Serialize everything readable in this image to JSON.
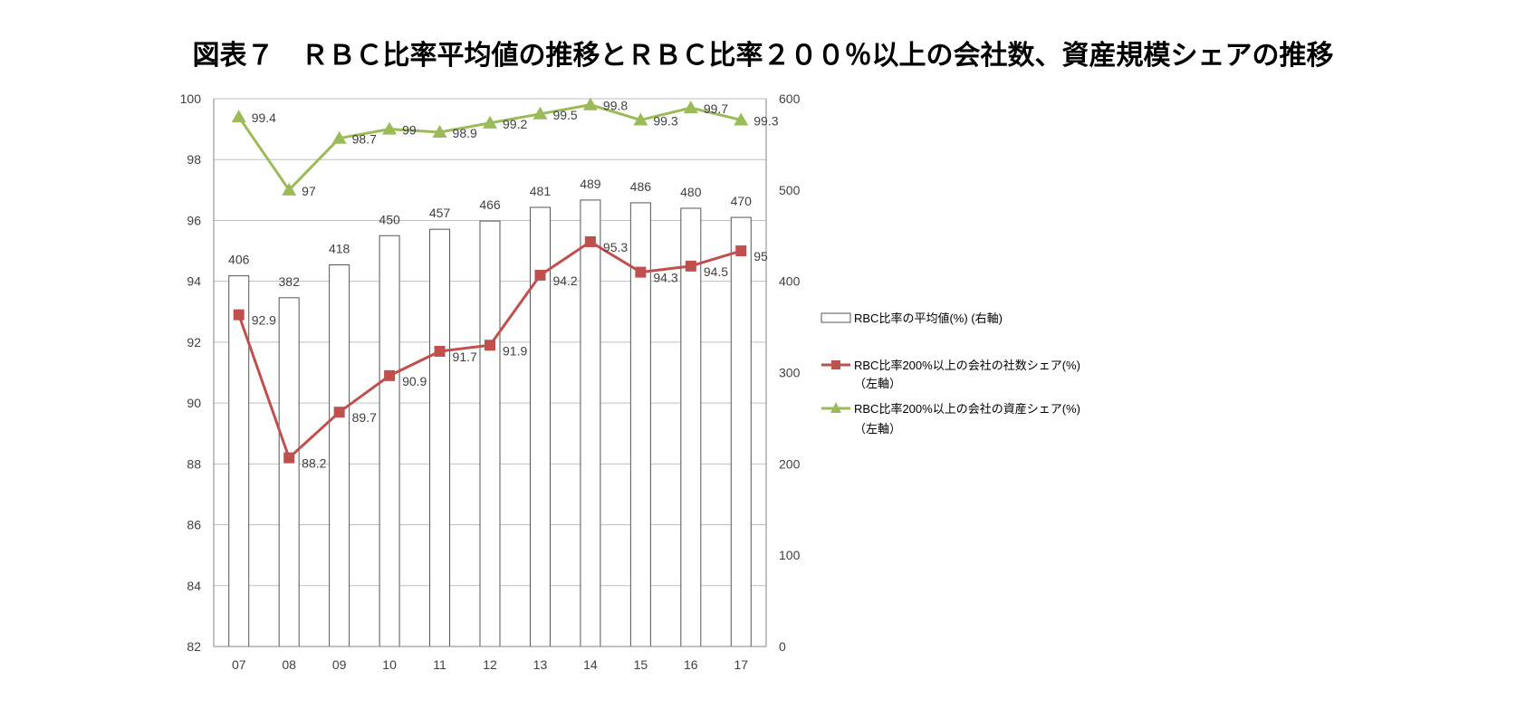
{
  "title": "図表７　ＲＢＣ比率平均値の推移とＲＢＣ比率２００％以上の会社数、資産規模シェアの推移",
  "chart_data": {
    "type": "bar",
    "categories": [
      "07",
      "08",
      "09",
      "10",
      "11",
      "12",
      "13",
      "14",
      "15",
      "16",
      "17"
    ],
    "y_left": {
      "min": 82,
      "max": 100,
      "step": 2,
      "ticks": [
        "100",
        "98",
        "96",
        "94",
        "92",
        "90",
        "88",
        "86",
        "84",
        "82"
      ]
    },
    "y_right": {
      "min": 0,
      "max": 600,
      "step": 100,
      "ticks": [
        "600",
        "500",
        "400",
        "300",
        "200",
        "100",
        "0"
      ]
    },
    "grid": true,
    "legend_position": "right",
    "series": [
      {
        "name": "RBC比率の平均値(%) (右軸)",
        "type": "bar",
        "axis": "right",
        "values": [
          406,
          382,
          418,
          450,
          457,
          466,
          481,
          489,
          486,
          480,
          470
        ],
        "labels": [
          "406",
          "382",
          "418",
          "450",
          "457",
          "466",
          "481",
          "489",
          "486",
          "480",
          "470"
        ],
        "color": "#ffffff",
        "stroke": "#555555"
      },
      {
        "name": "RBC比率200%以上の会社の社数シェア(%)",
        "name_line2": "（左軸）",
        "type": "line",
        "axis": "left",
        "values": [
          92.9,
          88.2,
          89.7,
          90.9,
          91.7,
          91.9,
          94.2,
          95.3,
          94.3,
          94.5,
          95.0
        ],
        "labels": [
          "92.9",
          "88.2",
          "89.7",
          "90.9",
          "91.7",
          "91.9",
          "94.2",
          "95.3",
          "94.3",
          "94.5",
          "95"
        ],
        "color": "#c0504d",
        "marker": "square"
      },
      {
        "name": "RBC比率200%以上の会社の資産シェア(%)",
        "name_line2": "（左軸）",
        "type": "line",
        "axis": "left",
        "values": [
          99.4,
          97.0,
          98.7,
          99.0,
          98.9,
          99.2,
          99.5,
          99.8,
          99.3,
          99.7,
          99.3
        ],
        "labels": [
          "99.4",
          "97",
          "98.7",
          "99",
          "98.9",
          "99.2",
          "99.5",
          "99.8",
          "99.3",
          "99.7",
          "99.3"
        ],
        "color": "#9bbb59",
        "marker": "triangle"
      }
    ]
  }
}
